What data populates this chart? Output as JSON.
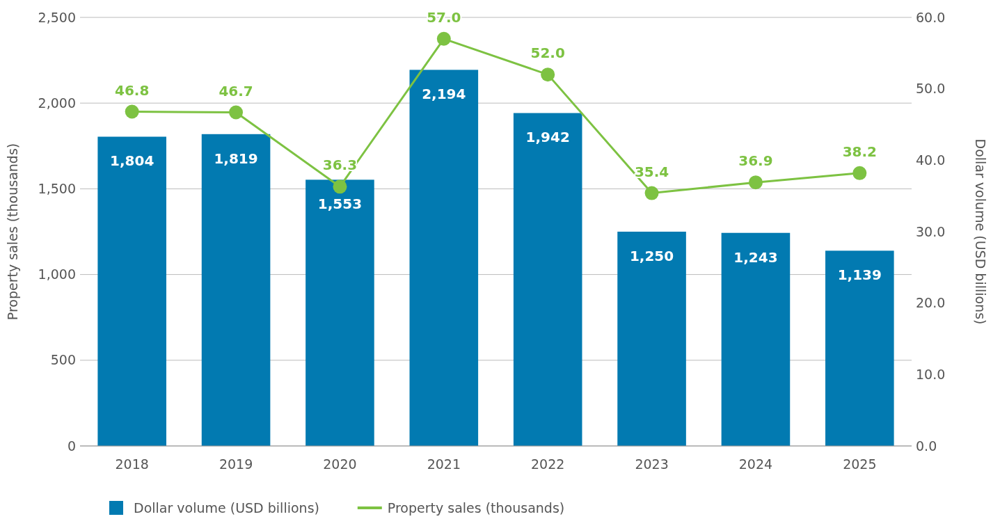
{
  "chart_data": {
    "type": "bar",
    "categories": [
      "2018",
      "2019",
      "2020",
      "2021",
      "2022",
      "2023",
      "2024",
      "2025"
    ],
    "ylabel": "Property sales (thousands)",
    "y2label": "Dollar volume (USD billions)",
    "ylim": [
      0,
      2500
    ],
    "yticks": [
      {
        "value": 0,
        "label": "0"
      },
      {
        "value": 500,
        "label": "500"
      },
      {
        "value": 1000,
        "label": "1,000"
      },
      {
        "value": 1500,
        "label": "1,500"
      },
      {
        "value": 2000,
        "label": "2,000"
      },
      {
        "value": 2500,
        "label": "2,500"
      }
    ],
    "y2lim": [
      0,
      60
    ],
    "y2ticks": [
      {
        "value": 0,
        "label": "0.0"
      },
      {
        "value": 10,
        "label": "10.0"
      },
      {
        "value": 20,
        "label": "20.0"
      },
      {
        "value": 30,
        "label": "30.0"
      },
      {
        "value": 40,
        "label": "40.0"
      },
      {
        "value": 50,
        "label": "50.0"
      },
      {
        "value": 60,
        "label": "60.0"
      }
    ],
    "grid": "y",
    "legend": "bottom left",
    "series": [
      {
        "name": "Dollar volume (USD billions)",
        "color": "#027ab1",
        "values": [
          1804,
          1819,
          1553,
          2194,
          1942,
          1250,
          1243,
          1139
        ],
        "value_labels": [
          "1,804",
          "1,819",
          "1,553",
          "2,194",
          "1,942",
          "1,250",
          "1,243",
          "1,139"
        ]
      },
      {
        "name": "Property sales (thousands)",
        "type": "line",
        "axis": "y2",
        "color": "#7dc242",
        "marker": "circle",
        "line_style": "solid",
        "values": [
          46.8,
          46.7,
          36.3,
          57.0,
          52.0,
          35.4,
          36.9,
          38.2
        ],
        "value_labels": [
          "46.8",
          "46.7",
          "36.3",
          "57.0",
          "52.0",
          "35.4",
          "36.9",
          "38.2"
        ]
      }
    ]
  }
}
